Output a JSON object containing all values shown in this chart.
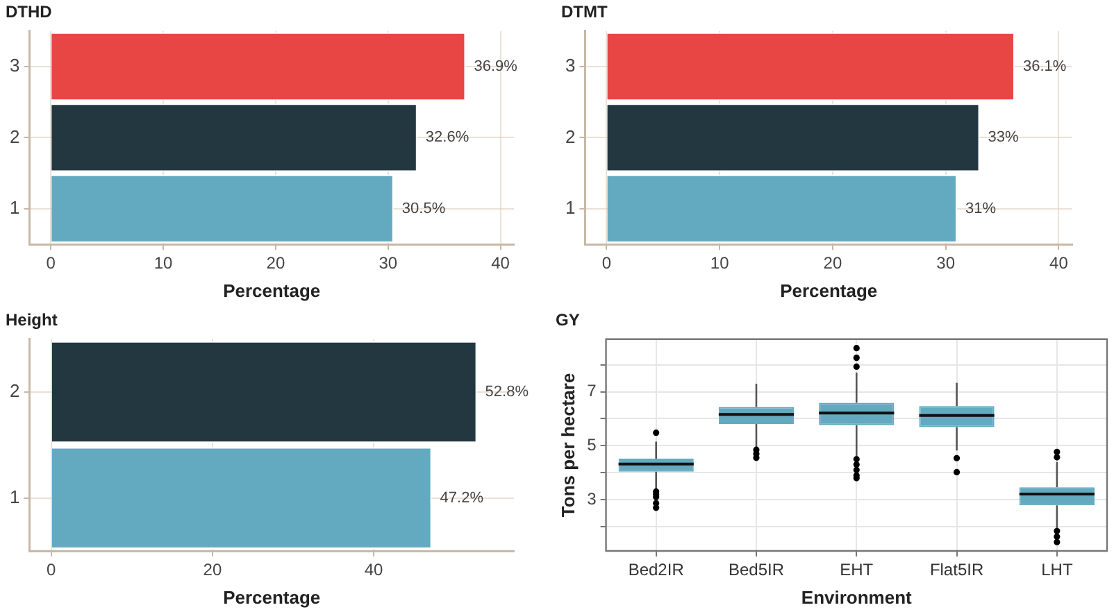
{
  "chart_data": [
    {
      "type": "bar",
      "title": "DTHD",
      "xlabel": "Percentage",
      "orientation": "horizontal",
      "categories": [
        "3",
        "2",
        "1"
      ],
      "values": [
        36.9,
        32.6,
        30.5
      ],
      "colors": [
        "#e84545",
        "#22373f",
        "#63aac0"
      ],
      "value_labels": [
        "36.9%",
        "32.6%",
        "30.5%"
      ],
      "xlim": [
        -1.9,
        41.2
      ],
      "xticks": [
        0,
        10,
        20,
        30,
        40
      ],
      "grid": true,
      "legend": false
    },
    {
      "type": "bar",
      "title": "DTMT",
      "xlabel": "Percentage",
      "orientation": "horizontal",
      "categories": [
        "3",
        "2",
        "1"
      ],
      "values": [
        36.1,
        33,
        31
      ],
      "colors": [
        "#e84545",
        "#22373f",
        "#63aac0"
      ],
      "value_labels": [
        "36.1%",
        "33%",
        "31%"
      ],
      "xlim": [
        -1.9,
        41.2
      ],
      "xticks": [
        0,
        10,
        20,
        30,
        40
      ],
      "grid": true,
      "legend": false
    },
    {
      "type": "bar",
      "title": "Height",
      "xlabel": "Percentage",
      "orientation": "horizontal",
      "categories": [
        "2",
        "1"
      ],
      "values": [
        52.8,
        47.2
      ],
      "colors": [
        "#22373f",
        "#63aac0"
      ],
      "value_labels": [
        "52.8%",
        "47.2%"
      ],
      "xlim": [
        -2.7,
        57.4
      ],
      "xticks": [
        0,
        20,
        40
      ],
      "grid": true,
      "legend": false
    },
    {
      "type": "box",
      "title": "GY",
      "xlabel": "Environment",
      "ylabel": "Tons per hectare",
      "categories": [
        "Bed2IR",
        "Bed5IR",
        "EHT",
        "Flat5IR",
        "LHT"
      ],
      "ylim": [
        1.1,
        8.95
      ],
      "yticks": [
        {
          "value": 2,
          "label": null
        },
        3,
        {
          "value": 4,
          "label": null
        },
        5,
        {
          "value": 6,
          "label": null
        },
        7,
        {
          "value": 8,
          "label": null
        }
      ],
      "grid": true,
      "legend": false,
      "series": [
        {
          "color": "#63aac0",
          "boxes": [
            {
              "low": 3.41,
              "q1": 4.04,
              "median": 4.32,
              "q3": 4.52,
              "high": 5.15,
              "outliers": [
                5.48,
                3.3,
                3.2,
                3.1,
                2.87,
                2.7
              ]
            },
            {
              "low": 4.9,
              "q1": 5.81,
              "median": 6.16,
              "q3": 6.44,
              "high": 7.3,
              "outliers": [
                4.85,
                4.7,
                4.55
              ]
            },
            {
              "low": 4.6,
              "q1": 5.76,
              "median": 6.21,
              "q3": 6.59,
              "high": 7.71,
              "outliers": [
                7.93,
                8.26,
                8.62,
                4.5,
                4.3,
                4.1,
                3.9,
                3.8
              ]
            },
            {
              "low": 4.82,
              "q1": 5.69,
              "median": 6.12,
              "q3": 6.47,
              "high": 7.33,
              "outliers": [
                4.54,
                4.02
              ]
            },
            {
              "low": 1.93,
              "q1": 2.79,
              "median": 3.21,
              "q3": 3.46,
              "high": 4.4,
              "outliers": [
                4.57,
                4.77,
                1.84,
                1.63,
                1.43
              ]
            }
          ]
        }
      ]
    }
  ]
}
